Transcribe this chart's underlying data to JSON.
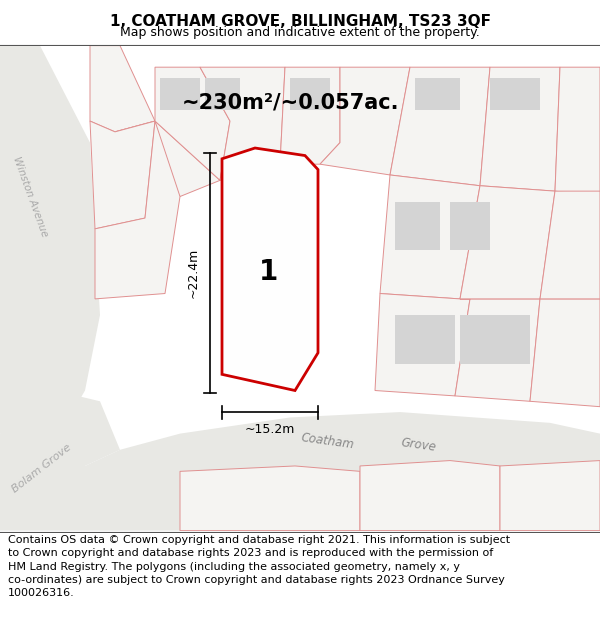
{
  "title": "1, COATHAM GROVE, BILLINGHAM, TS23 3QF",
  "subtitle": "Map shows position and indicative extent of the property.",
  "area_label": "~230m²/~0.057ac.",
  "dim_width": "~15.2m",
  "dim_height": "~22.4m",
  "plot_label": "1",
  "street_label": "Coatham Grove",
  "street_label2": "Bolam Grove",
  "avenue_label": "Winston Avenue",
  "footer_line1": "Contains OS data © Crown copyright and database right 2021. This information is subject",
  "footer_line2": "to Crown copyright and database rights 2023 and is reproduced with the permission of",
  "footer_line3": "HM Land Registry. The polygons (including the associated geometry, namely x, y",
  "footer_line4": "co-ordinates) are subject to Crown copyright and database rights 2023 Ordnance Survey",
  "footer_line5": "100026316.",
  "map_bg": "#f0eeec",
  "road_fill": "#e8e8e4",
  "parcel_fill": "#f5f4f2",
  "building_fill": "#d4d4d4",
  "boundary_color": "#e09090",
  "road_boundary": "#c8c8c4",
  "plot_fill": "#ffffff",
  "plot_outline": "#cc0000",
  "title_fontsize": 11,
  "subtitle_fontsize": 9,
  "footer_fontsize": 8.0,
  "area_fontsize": 15,
  "dim_fontsize": 9,
  "label_fontsize": 20
}
